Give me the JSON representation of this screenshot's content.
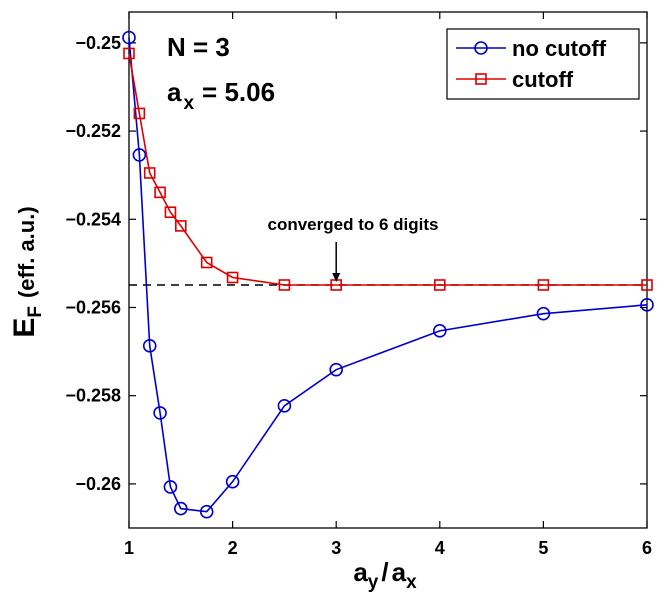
{
  "chart_data": {
    "type": "line",
    "title": "",
    "xlabel": "a_y / a_x",
    "xlabel_parts": {
      "a1": "a",
      "s1": "y",
      "sep": "/",
      "a2": "a",
      "s2": "x"
    },
    "ylabel": "E_F (eff. a.u.)",
    "ylabel_parts": {
      "main": "E",
      "sub": "F",
      "rest": "(eff. a.u.)"
    },
    "xlim": [
      1,
      6
    ],
    "ylim": [
      -0.261,
      -0.2493
    ],
    "xticks": [
      1,
      2,
      3,
      4,
      5,
      6
    ],
    "xtick_labels": [
      "1",
      "2",
      "3",
      "4",
      "5",
      "6"
    ],
    "yticks": [
      -0.25,
      -0.252,
      -0.254,
      -0.256,
      -0.258,
      -0.26
    ],
    "ytick_labels": [
      "−0.25",
      "−0.252",
      "−0.254",
      "−0.256",
      "−0.258",
      "−0.26"
    ],
    "grid": false,
    "legend_position": "top-right",
    "series": [
      {
        "name": "no cutoff",
        "color": "#0000cc",
        "marker": "circle",
        "x": [
          1.0,
          1.1,
          1.2,
          1.3,
          1.4,
          1.5,
          1.75,
          2.0,
          2.5,
          3.0,
          4.0,
          5.0,
          6.0
        ],
        "y": [
          -0.24988,
          -0.25254,
          -0.25687,
          -0.25839,
          -0.26007,
          -0.26056,
          -0.26063,
          -0.25995,
          -0.25823,
          -0.25741,
          -0.25653,
          -0.25614,
          -0.25594
        ]
      },
      {
        "name": "cutoff",
        "color": "#dd0000",
        "marker": "square",
        "x": [
          1.0,
          1.1,
          1.2,
          1.3,
          1.4,
          1.5,
          1.75,
          2.0,
          2.5,
          3.0,
          4.0,
          5.0,
          6.0
        ],
        "y": [
          -0.25024,
          -0.2516,
          -0.25295,
          -0.25339,
          -0.25384,
          -0.25415,
          -0.25498,
          -0.25532,
          -0.25549,
          -0.25549,
          -0.25549,
          -0.25549,
          -0.25549
        ]
      }
    ],
    "reference_line": {
      "y": -0.25549,
      "style": "dashed",
      "color": "#000000"
    },
    "annotations": {
      "n_label": "N = 3",
      "ax_main": "a",
      "ax_sub": "x",
      "ax_value": "= 5.06",
      "converged_text": "converged to 6 digits",
      "arrow_target": {
        "x": 3.0,
        "y": -0.25549
      }
    }
  }
}
